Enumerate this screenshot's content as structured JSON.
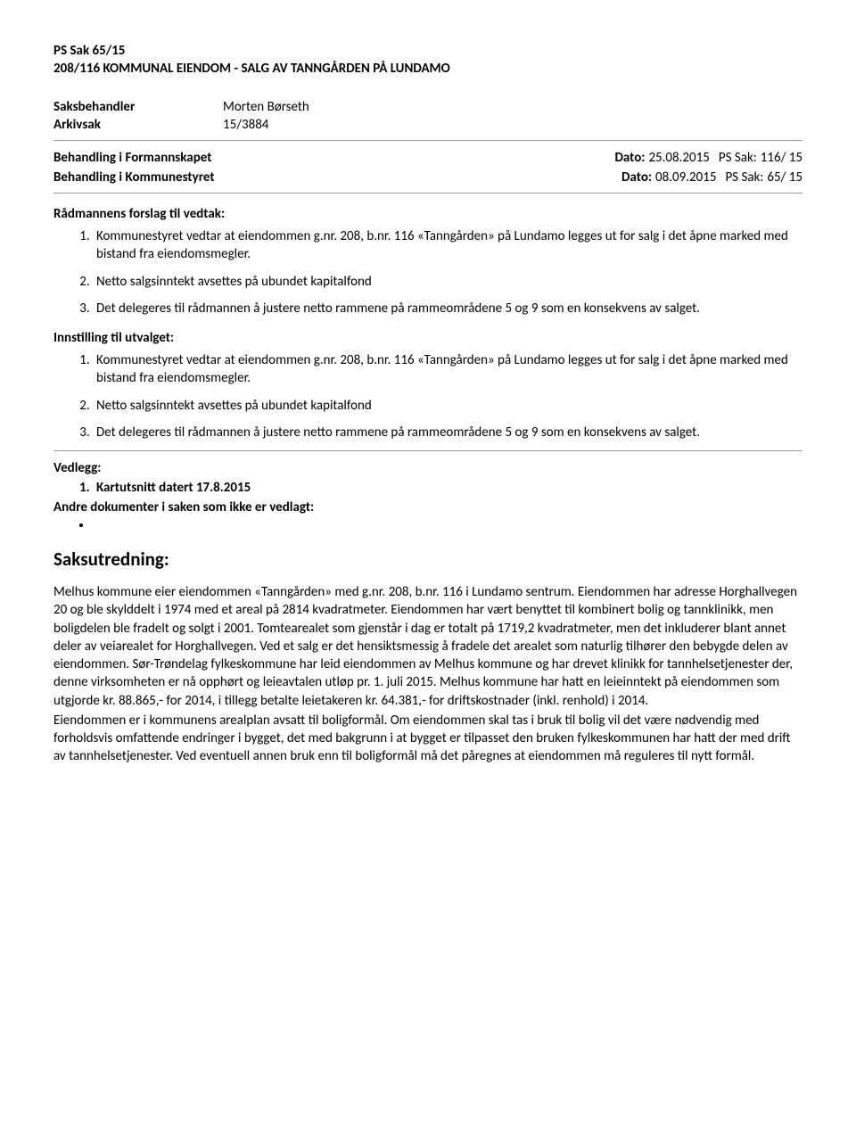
{
  "header": {
    "case_line": "PS  Sak 65/15",
    "subject": "208/116 KOMMUNAL EIENDOM - SALG AV TANNGÅRDEN PÅ LUNDAMO"
  },
  "info": {
    "handler_label": "Saksbehandler",
    "handler_value": "Morten Børseth",
    "archive_label": "Arkivsak",
    "archive_value": "15/3884"
  },
  "processing": [
    {
      "left": "Behandling i Formannskapet",
      "date_label": "Dato:",
      "date": "25.08.2015",
      "sak_label": "PS Sak:",
      "sak": "116/ 15"
    },
    {
      "left": "Behandling i Kommunestyret",
      "date_label": "Dato:",
      "date": "08.09.2015",
      "sak_label": "PS Sak:",
      "sak": "65/ 15"
    }
  ],
  "radmann": {
    "heading": "Rådmannens forslag til vedtak:",
    "items": [
      "Kommunestyret vedtar at eiendommen g.nr. 208, b.nr. 116 «Tanngården» på Lundamo legges ut for salg i det åpne marked med bistand fra eiendomsmegler.",
      "Netto salgsinntekt avsettes på ubundet kapitalfond",
      "Det delegeres til rådmannen å justere netto rammene på rammeområdene 5 og 9 som en konsekvens av salget."
    ]
  },
  "innstilling": {
    "heading": "Innstilling til utvalget:",
    "items": [
      "Kommunestyret vedtar at eiendommen g.nr. 208, b.nr. 116 «Tanngården» på Lundamo legges ut for salg i det åpne marked med bistand fra eiendomsmegler.",
      "Netto salgsinntekt avsettes på ubundet kapitalfond",
      "Det delegeres til rådmannen å justere netto rammene på rammeområdene 5 og 9 som en konsekvens av salget."
    ]
  },
  "vedlegg": {
    "heading": "Vedlegg:",
    "items": [
      "Kartutsnitt datert 17.8.2015"
    ]
  },
  "andre": {
    "heading": "Andre dokumenter i saken som ikke er vedlagt:",
    "bullet": ""
  },
  "saksutredning": {
    "heading": "Saksutredning:",
    "para1": "Melhus kommune eier eiendommen «Tanngården» med g.nr. 208, b.nr. 116 i Lundamo sentrum. Eiendommen har adresse Horghallvegen 20 og ble skylddelt i 1974 med et areal på 2814 kvadratmeter. Eiendommen har vært benyttet til kombinert bolig og tannklinikk, men boligdelen ble fradelt og solgt i 2001. Tomtearealet som gjenstår i dag er totalt på 1719,2 kvadratmeter, men det inkluderer blant annet deler av veiarealet for Horghallvegen. Ved et salg er det hensiktsmessig å fradele det arealet som naturlig tilhører den bebygde delen av eiendommen. Sør-Trøndelag fylkeskommune har leid eiendommen av Melhus kommune og har drevet klinikk for tannhelsetjenester der, denne virksomheten er nå opphørt og leieavtalen utløp pr. 1. juli 2015. Melhus kommune har hatt en leieinntekt på eiendommen som utgjorde kr. 88.865,- for 2014, i tillegg betalte leietakeren kr. 64.381,- for driftskostnader (inkl. renhold) i 2014.",
    "para2": "Eiendommen er i kommunens arealplan avsatt til boligformål. Om eiendommen skal tas i bruk til bolig vil det være nødvendig med forholdsvis omfattende endringer i bygget, det med bakgrunn i at bygget er tilpasset den bruken fylkeskommunen har hatt der med drift av tannhelsetjenester. Ved eventuell annen bruk enn til boligformål må det påregnes at eiendommen må reguleres til nytt formål."
  }
}
